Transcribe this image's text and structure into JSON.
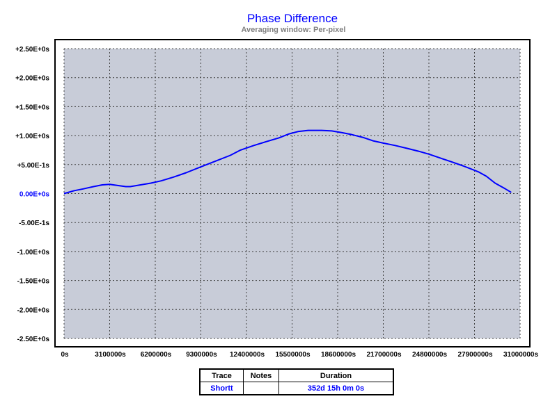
{
  "chart_data": {
    "type": "line",
    "title": "Phase Difference",
    "subtitle": "Averaging window: Per-pixel",
    "xlim": [
      0,
      31000000
    ],
    "ylim": [
      -2.5,
      2.5
    ],
    "x_ticks": [
      {
        "value": 0,
        "label": "0s"
      },
      {
        "value": 3100000,
        "label": "3100000s"
      },
      {
        "value": 6200000,
        "label": "6200000s"
      },
      {
        "value": 9300000,
        "label": "9300000s"
      },
      {
        "value": 12400000,
        "label": "12400000s"
      },
      {
        "value": 15500000,
        "label": "15500000s"
      },
      {
        "value": 18600000,
        "label": "18600000s"
      },
      {
        "value": 21700000,
        "label": "21700000s"
      },
      {
        "value": 24800000,
        "label": "24800000s"
      },
      {
        "value": 27900000,
        "label": "27900000s"
      },
      {
        "value": 31000000,
        "label": "31000000s"
      }
    ],
    "y_ticks": [
      {
        "value": 2.5,
        "label": "+2.50E+0s"
      },
      {
        "value": 2.0,
        "label": "+2.00E+0s"
      },
      {
        "value": 1.5,
        "label": "+1.50E+0s"
      },
      {
        "value": 1.0,
        "label": "+1.00E+0s"
      },
      {
        "value": 0.5,
        "label": "+5.00E-1s"
      },
      {
        "value": 0.0,
        "label": "0.00E+0s"
      },
      {
        "value": -0.5,
        "label": "-5.00E-1s"
      },
      {
        "value": -1.0,
        "label": "-1.00E+0s"
      },
      {
        "value": -1.5,
        "label": "-1.50E+0s"
      },
      {
        "value": -2.0,
        "label": "-2.00E+0s"
      },
      {
        "value": -2.5,
        "label": "-2.50E+0s"
      }
    ],
    "grid": true,
    "colors": {
      "line": "#0000ff",
      "plot_background": "#c8ccd8",
      "grid": "#404040"
    },
    "series": [
      {
        "name": "Shortt",
        "x": [
          0,
          700000,
          1300000,
          2000000,
          2600000,
          3100000,
          3600000,
          4200000,
          4500000,
          5200000,
          5900000,
          6600000,
          7400000,
          8300000,
          9300000,
          10300000,
          11300000,
          12000000,
          12900000,
          13800000,
          14600000,
          15300000,
          15900000,
          16600000,
          17200000,
          17500000,
          18200000,
          18900000,
          19500000,
          20300000,
          21000000,
          21700000,
          22500000,
          23300000,
          24100000,
          24800000,
          25600000,
          26300000,
          27100000,
          27600000,
          28200000,
          28700000,
          29300000,
          30000000,
          30400000
        ],
        "y": [
          0.0,
          0.05,
          0.08,
          0.12,
          0.15,
          0.16,
          0.14,
          0.12,
          0.12,
          0.15,
          0.18,
          0.22,
          0.28,
          0.36,
          0.46,
          0.56,
          0.66,
          0.75,
          0.83,
          0.9,
          0.96,
          1.03,
          1.07,
          1.09,
          1.09,
          1.09,
          1.08,
          1.05,
          1.02,
          0.97,
          0.91,
          0.87,
          0.83,
          0.78,
          0.73,
          0.68,
          0.61,
          0.55,
          0.48,
          0.43,
          0.37,
          0.3,
          0.18,
          0.08,
          0.02
        ]
      }
    ]
  },
  "legend_table": {
    "headers": [
      "Trace",
      "Notes",
      "Duration"
    ],
    "row": {
      "trace": "Shortt",
      "notes": "",
      "duration": "352d 15h 0m 0s"
    }
  }
}
